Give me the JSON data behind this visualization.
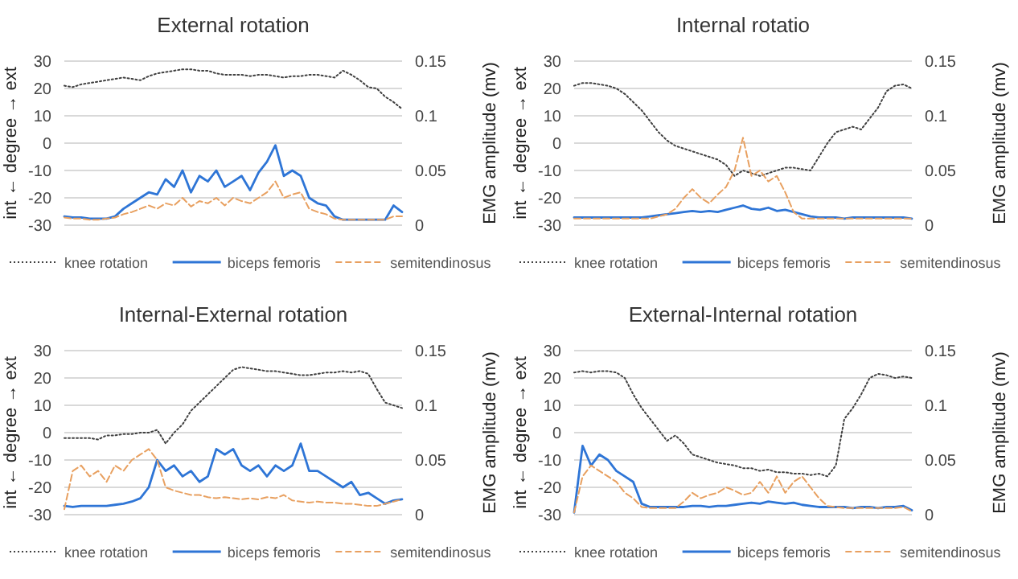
{
  "chart_data": [
    {
      "type": "line",
      "title": "External rotation",
      "ylabel": "int ← degree → ext",
      "y2label": "EMG amplitude (mv)",
      "categories": [
        null,
        null,
        null,
        null,
        null,
        null,
        null,
        null,
        null,
        null,
        null,
        null,
        null,
        null,
        null,
        null,
        null,
        null,
        null,
        null,
        null,
        null,
        null,
        null,
        null,
        null,
        null,
        null,
        null,
        null,
        null,
        null,
        null,
        null,
        null,
        null,
        null,
        null,
        null,
        null,
        null
      ],
      "ylim": [
        -30,
        30
      ],
      "yticks": [
        -30,
        -20,
        -10,
        0,
        10,
        20,
        30
      ],
      "y2lim": [
        0,
        0.15
      ],
      "y2ticks": [
        0,
        0.05,
        0.1,
        0.15
      ],
      "grid": "y",
      "legend": "bottom",
      "series": [
        {
          "name": "knee rotation",
          "color": "#404040",
          "line_style": "dotted",
          "values": [
            21,
            20.5,
            21.5,
            22,
            22.5,
            23,
            23.5,
            24,
            23.5,
            23,
            24.5,
            25.5,
            26,
            26.5,
            27,
            27,
            26.5,
            26.5,
            25.5,
            25,
            25,
            25,
            24.5,
            25,
            25,
            24.5,
            24,
            24.5,
            24.5,
            25,
            25,
            24.5,
            24,
            26.5,
            25,
            23,
            20.5,
            20,
            17,
            15,
            12.5
          ]
        },
        {
          "name": "biceps femoris",
          "color": "#2e75d6",
          "line_style": "solid",
          "axis": "y2",
          "values": [
            0.008,
            0.007,
            0.007,
            0.006,
            0.006,
            0.006,
            0.008,
            0.015,
            0.02,
            0.025,
            0.03,
            0.028,
            0.042,
            0.035,
            0.05,
            0.03,
            0.045,
            0.04,
            0.05,
            0.035,
            0.04,
            0.045,
            0.032,
            0.048,
            0.058,
            0.073,
            0.045,
            0.05,
            0.045,
            0.025,
            0.02,
            0.018,
            0.008,
            0.005,
            0.005,
            0.005,
            0.005,
            0.005,
            0.005,
            0.018,
            0.012
          ]
        },
        {
          "name": "semitendinosus",
          "color": "#e8a060",
          "line_style": "dashed",
          "axis": "y2",
          "values": [
            0.007,
            0.006,
            0.006,
            0.005,
            0.005,
            0.006,
            0.007,
            0.01,
            0.012,
            0.015,
            0.018,
            0.015,
            0.02,
            0.018,
            0.025,
            0.017,
            0.022,
            0.02,
            0.025,
            0.018,
            0.025,
            0.022,
            0.02,
            0.025,
            0.03,
            0.04,
            0.025,
            0.028,
            0.03,
            0.015,
            0.012,
            0.01,
            0.006,
            0.005,
            0.005,
            0.005,
            0.005,
            0.005,
            0.005,
            0.008,
            0.008
          ]
        }
      ]
    },
    {
      "type": "line",
      "title": "Internal rotatio",
      "ylabel": "int ← degree → ext",
      "y2label": "EMG amplitude (mv)",
      "categories": [
        null,
        null,
        null,
        null,
        null,
        null,
        null,
        null,
        null,
        null,
        null,
        null,
        null,
        null,
        null,
        null,
        null,
        null,
        null,
        null,
        null,
        null,
        null,
        null,
        null,
        null,
        null,
        null,
        null,
        null,
        null,
        null,
        null,
        null,
        null,
        null,
        null,
        null,
        null,
        null,
        null
      ],
      "ylim": [
        -30,
        30
      ],
      "yticks": [
        -30,
        -20,
        -10,
        0,
        10,
        20,
        30
      ],
      "y2lim": [
        0,
        0.15
      ],
      "y2ticks": [
        0,
        0.05,
        0.1,
        0.15
      ],
      "grid": "y",
      "legend": "bottom",
      "series": [
        {
          "name": "knee rotation",
          "color": "#404040",
          "line_style": "dotted",
          "values": [
            21,
            22,
            22,
            21.5,
            21,
            20,
            18,
            15,
            12,
            8,
            4,
            1,
            -1,
            -2,
            -3,
            -4,
            -5,
            -6,
            -8,
            -12,
            -10,
            -11,
            -12,
            -11,
            -10,
            -9,
            -9,
            -9.5,
            -10,
            -5,
            0,
            4,
            5,
            6,
            5,
            9,
            13,
            19,
            21,
            21.5,
            20
          ]
        },
        {
          "name": "biceps femoris",
          "color": "#2e75d6",
          "line_style": "solid",
          "axis": "y2",
          "values": [
            0.007,
            0.007,
            0.007,
            0.007,
            0.007,
            0.007,
            0.007,
            0.007,
            0.007,
            0.008,
            0.009,
            0.01,
            0.011,
            0.012,
            0.013,
            0.012,
            0.013,
            0.012,
            0.014,
            0.016,
            0.018,
            0.015,
            0.014,
            0.016,
            0.013,
            0.014,
            0.012,
            0.01,
            0.008,
            0.007,
            0.007,
            0.007,
            0.006,
            0.007,
            0.007,
            0.007,
            0.007,
            0.007,
            0.007,
            0.007,
            0.006
          ]
        },
        {
          "name": "semitendinosus",
          "color": "#e8a060",
          "line_style": "dashed",
          "axis": "y2",
          "values": [
            0.006,
            0.006,
            0.006,
            0.006,
            0.006,
            0.006,
            0.006,
            0.006,
            0.006,
            0.006,
            0.008,
            0.01,
            0.015,
            0.025,
            0.033,
            0.025,
            0.02,
            0.028,
            0.035,
            0.05,
            0.08,
            0.045,
            0.05,
            0.04,
            0.045,
            0.03,
            0.012,
            0.006,
            0.006,
            0.006,
            0.006,
            0.006,
            0.006,
            0.006,
            0.006,
            0.006,
            0.006,
            0.006,
            0.006,
            0.006,
            0.006
          ]
        }
      ]
    },
    {
      "type": "line",
      "title": "Internal-External rotation",
      "ylabel": "int ← degree → ext",
      "y2label": "EMG amplitude (mv)",
      "categories": [
        null,
        null,
        null,
        null,
        null,
        null,
        null,
        null,
        null,
        null,
        null,
        null,
        null,
        null,
        null,
        null,
        null,
        null,
        null,
        null,
        null,
        null,
        null,
        null,
        null,
        null,
        null,
        null,
        null,
        null,
        null,
        null,
        null,
        null,
        null,
        null,
        null,
        null,
        null,
        null,
        null
      ],
      "ylim": [
        -30,
        30
      ],
      "yticks": [
        -30,
        -20,
        -10,
        0,
        10,
        20,
        30
      ],
      "y2lim": [
        0,
        0.15
      ],
      "y2ticks": [
        0,
        0.05,
        0.1,
        0.15
      ],
      "grid": "y",
      "legend": "bottom",
      "series": [
        {
          "name": "knee rotation",
          "color": "#404040",
          "line_style": "dotted",
          "values": [
            -2,
            -2,
            -2,
            -2,
            -2.5,
            -1,
            -1,
            -0.5,
            -0.5,
            0,
            0,
            1,
            -4,
            0,
            3,
            8,
            11,
            14,
            17,
            20,
            23,
            24,
            23.5,
            23,
            22.5,
            22.5,
            22,
            21.5,
            21,
            21,
            21.5,
            22,
            22,
            22.5,
            22,
            22.5,
            21.5,
            16,
            11,
            10,
            9
          ]
        },
        {
          "name": "biceps femoris",
          "color": "#2e75d6",
          "line_style": "solid",
          "axis": "y2",
          "values": [
            0.008,
            0.007,
            0.008,
            0.008,
            0.008,
            0.008,
            0.009,
            0.01,
            0.012,
            0.015,
            0.025,
            0.05,
            0.04,
            0.045,
            0.035,
            0.04,
            0.03,
            0.035,
            0.06,
            0.055,
            0.06,
            0.045,
            0.04,
            0.045,
            0.035,
            0.045,
            0.04,
            0.045,
            0.065,
            0.04,
            0.04,
            0.035,
            0.03,
            0.025,
            0.03,
            0.018,
            0.02,
            0.015,
            0.01,
            0.013,
            0.014
          ]
        },
        {
          "name": "semitendinosus",
          "color": "#e8a060",
          "line_style": "dashed",
          "axis": "y2",
          "values": [
            0.005,
            0.04,
            0.045,
            0.035,
            0.04,
            0.03,
            0.045,
            0.04,
            0.05,
            0.055,
            0.06,
            0.05,
            0.025,
            0.022,
            0.02,
            0.018,
            0.018,
            0.016,
            0.015,
            0.016,
            0.015,
            0.014,
            0.015,
            0.014,
            0.016,
            0.015,
            0.018,
            0.013,
            0.012,
            0.011,
            0.012,
            0.011,
            0.011,
            0.01,
            0.01,
            0.009,
            0.008,
            0.008,
            0.01,
            0.012,
            0.014
          ]
        }
      ]
    },
    {
      "type": "line",
      "title": "External-Internal rotation",
      "ylabel": "int ← degree → ext",
      "y2label": "EMG amplitude (mv)",
      "categories": [
        null,
        null,
        null,
        null,
        null,
        null,
        null,
        null,
        null,
        null,
        null,
        null,
        null,
        null,
        null,
        null,
        null,
        null,
        null,
        null,
        null,
        null,
        null,
        null,
        null,
        null,
        null,
        null,
        null,
        null,
        null,
        null,
        null,
        null,
        null,
        null,
        null,
        null,
        null,
        null,
        null
      ],
      "ylim": [
        -30,
        30
      ],
      "yticks": [
        -30,
        -20,
        -10,
        0,
        10,
        20,
        30
      ],
      "y2lim": [
        0,
        0.15
      ],
      "y2ticks": [
        0,
        0.05,
        0.1,
        0.15
      ],
      "grid": "y",
      "legend": "bottom",
      "series": [
        {
          "name": "knee rotation",
          "color": "#404040",
          "line_style": "dotted",
          "values": [
            22,
            22.5,
            22,
            22.5,
            22.5,
            22,
            20,
            14,
            9,
            5,
            1,
            -3,
            -1,
            -4,
            -8,
            -9,
            -10,
            -11,
            -11.5,
            -12,
            -13,
            -13,
            -14,
            -13.5,
            -14.5,
            -14.5,
            -15,
            -15,
            -15.5,
            -15,
            -16,
            -12,
            5,
            9,
            14,
            20,
            21.5,
            21,
            20,
            20.5,
            20
          ]
        },
        {
          "name": "biceps femoris",
          "color": "#2e75d6",
          "line_style": "solid",
          "axis": "y2",
          "values": [
            0.002,
            0.063,
            0.045,
            0.055,
            0.05,
            0.04,
            0.035,
            0.03,
            0.01,
            0.007,
            0.007,
            0.007,
            0.007,
            0.007,
            0.008,
            0.008,
            0.007,
            0.008,
            0.008,
            0.009,
            0.01,
            0.011,
            0.01,
            0.012,
            0.011,
            0.01,
            0.011,
            0.009,
            0.008,
            0.007,
            0.007,
            0.007,
            0.007,
            0.006,
            0.007,
            0.007,
            0.006,
            0.007,
            0.007,
            0.008,
            0.004
          ]
        },
        {
          "name": "semitendinosus",
          "color": "#e8a060",
          "line_style": "dashed",
          "axis": "y2",
          "values": [
            0.002,
            0.035,
            0.045,
            0.04,
            0.035,
            0.03,
            0.02,
            0.015,
            0.007,
            0.006,
            0.006,
            0.006,
            0.006,
            0.012,
            0.02,
            0.015,
            0.018,
            0.02,
            0.025,
            0.022,
            0.018,
            0.02,
            0.03,
            0.02,
            0.035,
            0.02,
            0.03,
            0.035,
            0.025,
            0.015,
            0.008,
            0.007,
            0.006,
            0.006,
            0.006,
            0.006,
            0.006,
            0.006,
            0.006,
            0.007,
            0.003
          ]
        }
      ]
    }
  ]
}
